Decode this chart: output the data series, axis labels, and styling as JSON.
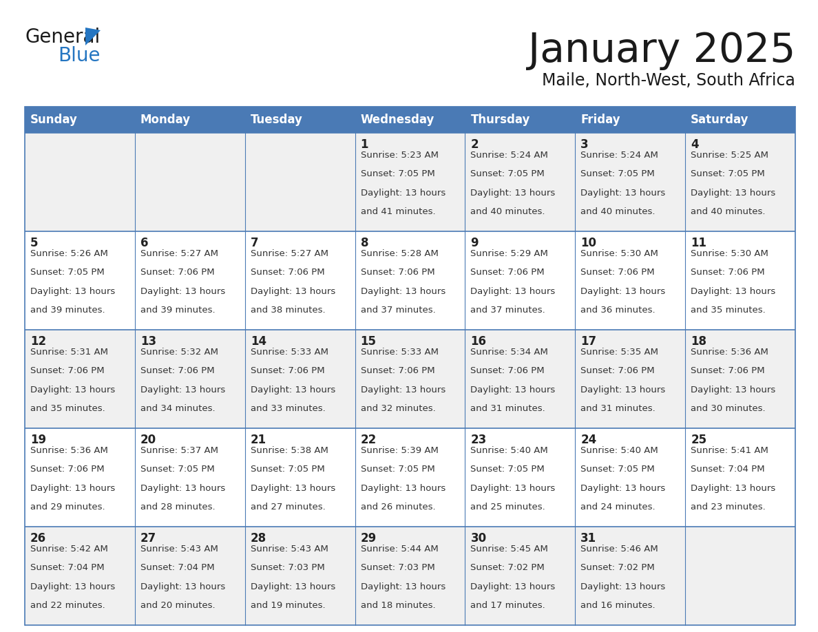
{
  "title": "January 2025",
  "subtitle": "Maile, North-West, South Africa",
  "days_of_week": [
    "Sunday",
    "Monday",
    "Tuesday",
    "Wednesday",
    "Thursday",
    "Friday",
    "Saturday"
  ],
  "header_bg": "#4a7ab5",
  "header_text": "#FFFFFF",
  "row_bg_odd": "#F0F0F0",
  "row_bg_even": "#FFFFFF",
  "line_color": "#4a7ab5",
  "title_color": "#1a1a1a",
  "subtitle_color": "#1a1a1a",
  "day_num_color": "#222222",
  "cell_text_color": "#333333",
  "logo_general_color": "#1a1a1a",
  "logo_blue_color": "#2475C1",
  "logo_tri_color": "#2475C1",
  "calendar": [
    [
      null,
      null,
      null,
      {
        "day": 1,
        "sunrise": "5:23 AM",
        "sunset": "7:05 PM",
        "daylight": "13 hours and 41 minutes."
      },
      {
        "day": 2,
        "sunrise": "5:24 AM",
        "sunset": "7:05 PM",
        "daylight": "13 hours and 40 minutes."
      },
      {
        "day": 3,
        "sunrise": "5:24 AM",
        "sunset": "7:05 PM",
        "daylight": "13 hours and 40 minutes."
      },
      {
        "day": 4,
        "sunrise": "5:25 AM",
        "sunset": "7:05 PM",
        "daylight": "13 hours and 40 minutes."
      }
    ],
    [
      {
        "day": 5,
        "sunrise": "5:26 AM",
        "sunset": "7:05 PM",
        "daylight": "13 hours and 39 minutes."
      },
      {
        "day": 6,
        "sunrise": "5:27 AM",
        "sunset": "7:06 PM",
        "daylight": "13 hours and 39 minutes."
      },
      {
        "day": 7,
        "sunrise": "5:27 AM",
        "sunset": "7:06 PM",
        "daylight": "13 hours and 38 minutes."
      },
      {
        "day": 8,
        "sunrise": "5:28 AM",
        "sunset": "7:06 PM",
        "daylight": "13 hours and 37 minutes."
      },
      {
        "day": 9,
        "sunrise": "5:29 AM",
        "sunset": "7:06 PM",
        "daylight": "13 hours and 37 minutes."
      },
      {
        "day": 10,
        "sunrise": "5:30 AM",
        "sunset": "7:06 PM",
        "daylight": "13 hours and 36 minutes."
      },
      {
        "day": 11,
        "sunrise": "5:30 AM",
        "sunset": "7:06 PM",
        "daylight": "13 hours and 35 minutes."
      }
    ],
    [
      {
        "day": 12,
        "sunrise": "5:31 AM",
        "sunset": "7:06 PM",
        "daylight": "13 hours and 35 minutes."
      },
      {
        "day": 13,
        "sunrise": "5:32 AM",
        "sunset": "7:06 PM",
        "daylight": "13 hours and 34 minutes."
      },
      {
        "day": 14,
        "sunrise": "5:33 AM",
        "sunset": "7:06 PM",
        "daylight": "13 hours and 33 minutes."
      },
      {
        "day": 15,
        "sunrise": "5:33 AM",
        "sunset": "7:06 PM",
        "daylight": "13 hours and 32 minutes."
      },
      {
        "day": 16,
        "sunrise": "5:34 AM",
        "sunset": "7:06 PM",
        "daylight": "13 hours and 31 minutes."
      },
      {
        "day": 17,
        "sunrise": "5:35 AM",
        "sunset": "7:06 PM",
        "daylight": "13 hours and 31 minutes."
      },
      {
        "day": 18,
        "sunrise": "5:36 AM",
        "sunset": "7:06 PM",
        "daylight": "13 hours and 30 minutes."
      }
    ],
    [
      {
        "day": 19,
        "sunrise": "5:36 AM",
        "sunset": "7:06 PM",
        "daylight": "13 hours and 29 minutes."
      },
      {
        "day": 20,
        "sunrise": "5:37 AM",
        "sunset": "7:05 PM",
        "daylight": "13 hours and 28 minutes."
      },
      {
        "day": 21,
        "sunrise": "5:38 AM",
        "sunset": "7:05 PM",
        "daylight": "13 hours and 27 minutes."
      },
      {
        "day": 22,
        "sunrise": "5:39 AM",
        "sunset": "7:05 PM",
        "daylight": "13 hours and 26 minutes."
      },
      {
        "day": 23,
        "sunrise": "5:40 AM",
        "sunset": "7:05 PM",
        "daylight": "13 hours and 25 minutes."
      },
      {
        "day": 24,
        "sunrise": "5:40 AM",
        "sunset": "7:05 PM",
        "daylight": "13 hours and 24 minutes."
      },
      {
        "day": 25,
        "sunrise": "5:41 AM",
        "sunset": "7:04 PM",
        "daylight": "13 hours and 23 minutes."
      }
    ],
    [
      {
        "day": 26,
        "sunrise": "5:42 AM",
        "sunset": "7:04 PM",
        "daylight": "13 hours and 22 minutes."
      },
      {
        "day": 27,
        "sunrise": "5:43 AM",
        "sunset": "7:04 PM",
        "daylight": "13 hours and 20 minutes."
      },
      {
        "day": 28,
        "sunrise": "5:43 AM",
        "sunset": "7:03 PM",
        "daylight": "13 hours and 19 minutes."
      },
      {
        "day": 29,
        "sunrise": "5:44 AM",
        "sunset": "7:03 PM",
        "daylight": "13 hours and 18 minutes."
      },
      {
        "day": 30,
        "sunrise": "5:45 AM",
        "sunset": "7:02 PM",
        "daylight": "13 hours and 17 minutes."
      },
      {
        "day": 31,
        "sunrise": "5:46 AM",
        "sunset": "7:02 PM",
        "daylight": "13 hours and 16 minutes."
      },
      null
    ]
  ]
}
